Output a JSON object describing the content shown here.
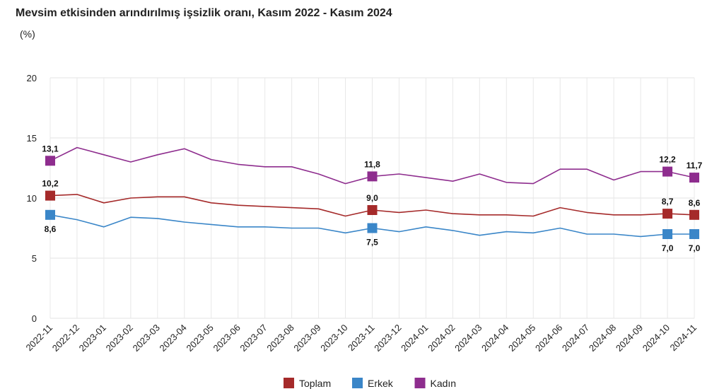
{
  "chart_data": {
    "type": "line",
    "title": "Mevsim etkisinden arındırılmış işsizlik oranı, Kasım 2022 - Kasım 2024",
    "subtitle": "(%)",
    "ylim": [
      0,
      20
    ],
    "yticks": [
      "0",
      "5",
      "10",
      "15",
      "20"
    ],
    "grid": true,
    "legend_position": "bottom",
    "categories": [
      "2022-11",
      "2022-12",
      "2023-01",
      "2023-02",
      "2023-03",
      "2023-04",
      "2023-05",
      "2023-06",
      "2023-07",
      "2023-08",
      "2023-09",
      "2023-10",
      "2023-11",
      "2023-12",
      "2024-01",
      "2024-02",
      "2024-03",
      "2024-04",
      "2024-05",
      "2024-06",
      "2024-07",
      "2024-08",
      "2024-09",
      "2024-10",
      "2024-11"
    ],
    "series": [
      {
        "name": "Toplam",
        "color": "#a52a2a",
        "values": [
          10.2,
          10.3,
          9.6,
          10.0,
          10.1,
          10.1,
          9.6,
          9.4,
          9.3,
          9.2,
          9.1,
          8.5,
          9.0,
          8.8,
          9.0,
          8.7,
          8.6,
          8.6,
          8.5,
          9.2,
          8.8,
          8.6,
          8.6,
          8.7,
          8.6
        ],
        "labels": [
          {
            "index": 0,
            "text": "10,2",
            "pos": "above"
          },
          {
            "index": 12,
            "text": "9,0",
            "pos": "above"
          },
          {
            "index": 23,
            "text": "8,7",
            "pos": "above"
          },
          {
            "index": 24,
            "text": "8,6",
            "pos": "above"
          }
        ]
      },
      {
        "name": "Erkek",
        "color": "#3a86c8",
        "values": [
          8.6,
          8.2,
          7.6,
          8.4,
          8.3,
          8.0,
          7.8,
          7.6,
          7.6,
          7.5,
          7.5,
          7.1,
          7.5,
          7.2,
          7.6,
          7.3,
          6.9,
          7.2,
          7.1,
          7.5,
          7.0,
          7.0,
          6.8,
          7.0,
          7.0
        ],
        "labels": [
          {
            "index": 0,
            "text": "8,6",
            "pos": "below"
          },
          {
            "index": 12,
            "text": "7,5",
            "pos": "below"
          },
          {
            "index": 23,
            "text": "7,0",
            "pos": "below"
          },
          {
            "index": 24,
            "text": "7,0",
            "pos": "below"
          }
        ]
      },
      {
        "name": "Kadın",
        "color": "#8e2d8e",
        "values": [
          13.1,
          14.2,
          13.6,
          13.0,
          13.6,
          14.1,
          13.2,
          12.8,
          12.6,
          12.6,
          12.0,
          11.2,
          11.8,
          12.0,
          11.7,
          11.4,
          12.0,
          11.3,
          11.2,
          12.4,
          12.4,
          11.5,
          12.2,
          12.2,
          11.7
        ],
        "labels": [
          {
            "index": 0,
            "text": "13,1",
            "pos": "above"
          },
          {
            "index": 12,
            "text": "11,8",
            "pos": "above"
          },
          {
            "index": 23,
            "text": "12,2",
            "pos": "above"
          },
          {
            "index": 24,
            "text": "11,7",
            "pos": "above"
          }
        ]
      }
    ]
  }
}
